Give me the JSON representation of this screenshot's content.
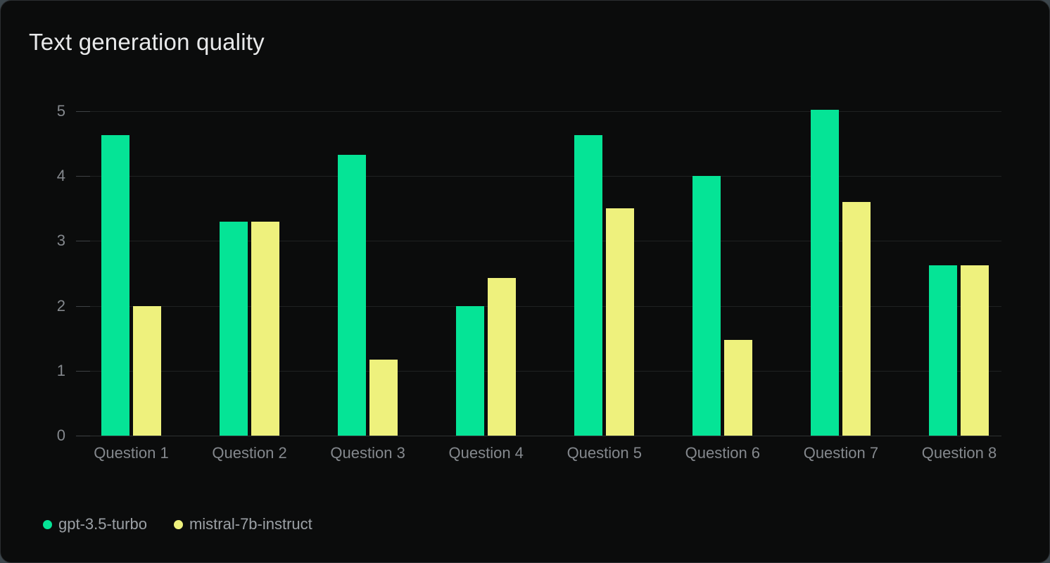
{
  "chart_data": {
    "type": "bar",
    "title": "Text generation quality",
    "categories": [
      "Question 1",
      "Question 2",
      "Question 3",
      "Question 4",
      "Question 5",
      "Question 6",
      "Question 7",
      "Question 8"
    ],
    "series": [
      {
        "name": "gpt-3.5-turbo",
        "color": "#05e496",
        "values": [
          4.63,
          3.3,
          4.33,
          2.0,
          4.63,
          4.0,
          5.02,
          2.63
        ]
      },
      {
        "name": "mistral-7b-instruct",
        "color": "#eef17d",
        "values": [
          2.0,
          3.3,
          1.17,
          2.43,
          3.5,
          1.47,
          3.6,
          2.63
        ]
      }
    ],
    "xlabel": "",
    "ylabel": "",
    "ylim": [
      0,
      5
    ],
    "yticks": [
      0,
      1,
      2,
      3,
      4,
      5
    ],
    "grid": true,
    "legend_position": "bottom-left"
  },
  "colors": {
    "card_background": "#0b0c0c",
    "title_text": "#e8e9ea",
    "axis_text": "#84888d",
    "legend_text": "#9ba0a5",
    "gridline": "#1f2222",
    "baseline": "#2e3133"
  }
}
